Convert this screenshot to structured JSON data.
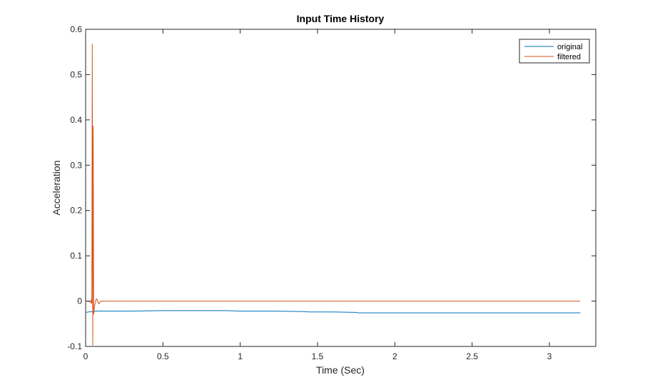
{
  "chart_data": {
    "type": "line",
    "title": "Input Time History",
    "xlabel": "Time (Sec)",
    "ylabel": "Acceleration",
    "xlim": [
      0,
      3.3
    ],
    "ylim": [
      -0.1,
      0.6
    ],
    "xticks": [
      0,
      0.5,
      1,
      1.5,
      2,
      2.5,
      3
    ],
    "xtick_labels": [
      "0",
      "0.5",
      "1",
      "1.5",
      "2",
      "2.5",
      "3"
    ],
    "yticks": [
      -0.1,
      0,
      0.1,
      0.2,
      0.3,
      0.4,
      0.5,
      0.6
    ],
    "ytick_labels": [
      "-0.1",
      "0",
      "0.1",
      "0.2",
      "0.3",
      "0.4",
      "0.5",
      "0.6"
    ],
    "grid": false,
    "legend_position": "top-right",
    "series": [
      {
        "name": "original",
        "color": "#0072BD",
        "x": [
          0,
          0.02,
          0.04,
          0.05,
          0.06,
          0.08,
          0.1,
          0.3,
          0.5,
          0.6,
          0.8,
          0.9,
          1.0,
          1.2,
          1.4,
          1.45,
          1.6,
          1.75,
          1.76,
          2.0,
          2.5,
          3.0,
          3.2
        ],
        "y": [
          -0.025,
          -0.024,
          -0.023,
          -0.024,
          -0.022,
          -0.022,
          -0.022,
          -0.022,
          -0.021,
          -0.021,
          -0.021,
          -0.021,
          -0.022,
          -0.022,
          -0.023,
          -0.024,
          -0.024,
          -0.025,
          -0.026,
          -0.026,
          -0.026,
          -0.026,
          -0.026
        ]
      },
      {
        "name": "filtered",
        "color": "#D95319",
        "x": [
          0,
          0.02,
          0.03,
          0.035,
          0.04,
          0.043,
          0.046,
          0.049,
          0.052,
          0.055,
          0.058,
          0.062,
          0.066,
          0.07,
          0.075,
          0.08,
          0.085,
          0.09,
          0.1,
          0.5,
          1.0,
          1.5,
          2.0,
          2.5,
          3.0,
          3.2
        ],
        "y": [
          0,
          0,
          -0.003,
          0.002,
          -0.006,
          0.568,
          -0.098,
          0.387,
          -0.03,
          -0.018,
          -0.01,
          -0.005,
          0.002,
          0.005,
          0.003,
          -0.002,
          -0.006,
          -0.003,
          0,
          0,
          0,
          0,
          0,
          0,
          0,
          0
        ]
      }
    ]
  }
}
